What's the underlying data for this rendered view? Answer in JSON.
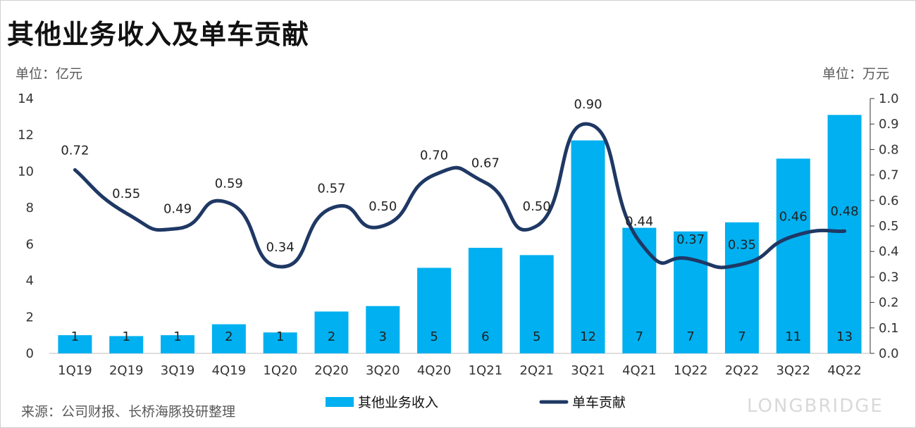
{
  "title": "其他业务收入及单车贡献",
  "unit_left": "单位：亿元",
  "unit_right": "单位：万元",
  "source": "来源：公司财报、长桥海豚投研整理",
  "watermark": "LONGBRIDGE",
  "colors": {
    "bar": "#00B0F0",
    "line": "#1F3864",
    "axis": "#bfbfbf"
  },
  "chart_data": {
    "type": "bar",
    "categories": [
      "1Q19",
      "2Q19",
      "3Q19",
      "4Q19",
      "1Q20",
      "2Q20",
      "3Q20",
      "4Q20",
      "1Q21",
      "2Q21",
      "3Q21",
      "4Q21",
      "1Q22",
      "2Q22",
      "3Q22",
      "4Q22"
    ],
    "series": [
      {
        "name": "其他业务收入",
        "type": "bar",
        "axis": "left",
        "values": [
          1.0,
          0.95,
          1.0,
          1.6,
          1.15,
          2.3,
          2.6,
          4.7,
          5.8,
          5.4,
          11.7,
          6.9,
          6.7,
          7.2,
          10.7,
          13.1
        ],
        "labels": [
          "1",
          "1",
          "1",
          "2",
          "1",
          "2",
          "3",
          "5",
          "6",
          "5",
          "12",
          "7",
          "7",
          "7",
          "11",
          "13"
        ]
      },
      {
        "name": "单车贡献",
        "type": "line",
        "axis": "right",
        "smooth": true,
        "values": [
          0.72,
          0.55,
          0.49,
          0.59,
          0.34,
          0.57,
          0.5,
          0.7,
          0.67,
          0.5,
          0.9,
          0.44,
          0.37,
          0.35,
          0.46,
          0.48
        ],
        "labels": [
          "0.72",
          "0.55",
          "0.49",
          "0.59",
          "0.34",
          "0.57",
          "0.50",
          "0.70",
          "0.67",
          "0.50",
          "0.90",
          "0.44",
          "0.37",
          "0.35",
          "0.46",
          "0.48"
        ]
      }
    ],
    "ylim_left": [
      0,
      14
    ],
    "yticks_left": [
      "0",
      "2",
      "4",
      "6",
      "8",
      "10",
      "12",
      "14"
    ],
    "ylim_right": [
      0,
      1.0
    ],
    "yticks_right": [
      "0.0",
      "0.1",
      "0.2",
      "0.3",
      "0.4",
      "0.5",
      "0.6",
      "0.7",
      "0.8",
      "0.9",
      "1.0"
    ],
    "legend": {
      "position": "bottom-center",
      "entries": [
        "其他业务收入",
        "单车贡献"
      ]
    }
  }
}
